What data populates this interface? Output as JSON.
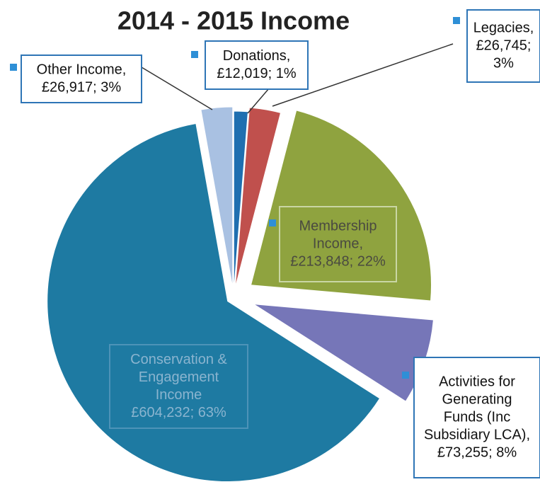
{
  "chart_data": {
    "type": "pie",
    "title": "2014 - 2015 Income",
    "categories": [
      "Donations",
      "Legacies",
      "Membership Income",
      "Activities for Generating Funds (Inc Subsidiary LCA)",
      "Conservation & Engagement Income",
      "Other Income"
    ],
    "values": [
      12019,
      26745,
      213848,
      73255,
      604232,
      26917
    ],
    "percents": [
      1,
      3,
      22,
      8,
      63,
      3
    ],
    "labels": [
      [
        "Donations,",
        "£12,019; 1%"
      ],
      [
        "Legacies,",
        "£26,745;",
        "3%"
      ],
      [
        "Membership",
        "Income,",
        "£213,848; 22%"
      ],
      [
        "Activities for",
        "Generating",
        "Funds (Inc",
        "Subsidiary LCA),",
        "£73,255; 8%"
      ],
      [
        "Conservation &",
        "Engagement",
        "Income",
        "£604,232; 63%"
      ],
      [
        "Other Income,",
        "£26,917; 3%"
      ]
    ],
    "colors": [
      "#1f6fb0",
      "#c0504d",
      "#8fa33f",
      "#7676b8",
      "#1e7aa2",
      "#a9c1e2"
    ]
  }
}
